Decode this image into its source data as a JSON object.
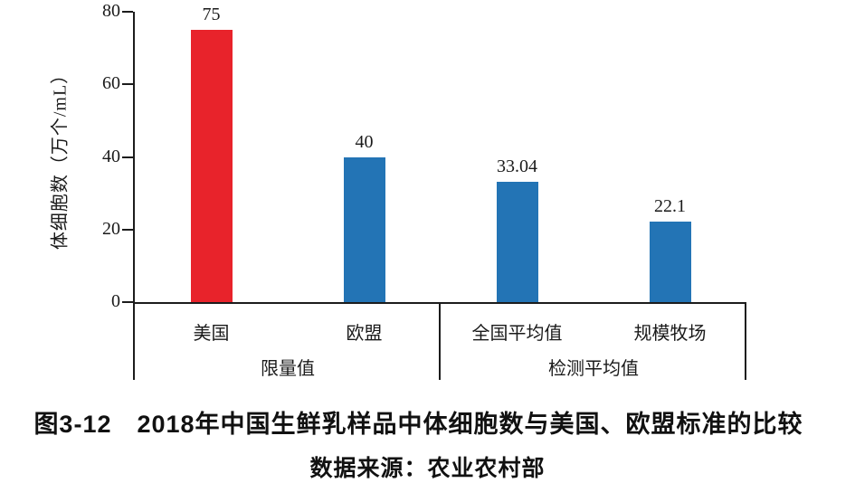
{
  "chart_data": {
    "type": "bar",
    "title": "图3-12　2018年中国生鲜乳样品中体细胞数与美国、欧盟标准的比较",
    "source_note": "数据来源：农业农村部",
    "ylabel": "体细胞数（万个/mL）",
    "ylim": [
      0,
      80
    ],
    "yticks": [
      0,
      20,
      40,
      60,
      80
    ],
    "grid": false,
    "legend": "none",
    "categories": [
      "美国",
      "欧盟",
      "全国平均值",
      "规模牧场"
    ],
    "values": [
      75,
      40,
      33.04,
      22.1
    ],
    "value_labels": [
      "75",
      "40",
      "33.04",
      "22.1"
    ],
    "bar_colors": [
      "#e8232b",
      "#2374b5",
      "#2374b5",
      "#2374b5"
    ],
    "groups": [
      {
        "label": "限量值",
        "start": 0,
        "end": 2
      },
      {
        "label": "检测平均值",
        "start": 2,
        "end": 4
      }
    ],
    "colors": {
      "limit_red": "#e8232b",
      "average_blue": "#2374b5",
      "axis": "#1c1c1c",
      "text": "#1a1a1a"
    }
  }
}
